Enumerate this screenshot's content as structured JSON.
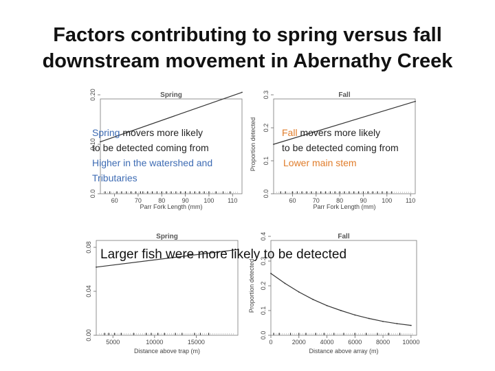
{
  "slide": {
    "title_line1": "Factors contributing to spring versus fall",
    "title_line2": "downstream movement in Abernathy Creek",
    "caption": "Larger fish were more likely to be detected",
    "colors": {
      "spring_accent": "#3d6bb3",
      "fall_accent": "#e07c2a"
    }
  },
  "annotations": {
    "spring_top": {
      "line1_accent": "Spring",
      "line1_rest": " movers more likely",
      "line2": "to be detected coming from",
      "line3": "Higher in the watershed and",
      "line4": "Tributaries"
    },
    "fall_top": {
      "line1_accent": "Fall",
      "line1_rest": " movers more likely",
      "line2": "to be detected coming from",
      "line3": "Lower main stem"
    }
  },
  "chart_data": [
    {
      "id": "spring-length",
      "type": "line",
      "title": "Spring",
      "xlabel": "Parr Fork Length (mm)",
      "ylabel": "",
      "xlim": [
        54,
        114
      ],
      "ylim": [
        0,
        0.2
      ],
      "xticks": [
        60,
        70,
        80,
        90,
        100,
        110
      ],
      "yticks": [
        0,
        0.1,
        0.2
      ],
      "ytick_labels": [
        "0.0",
        "0.10",
        "0.20"
      ],
      "x": [
        54,
        114
      ],
      "y": [
        0.105,
        0.205
      ],
      "rug": [
        56,
        58,
        61,
        63,
        65,
        67,
        69,
        71,
        72,
        74,
        76,
        78,
        80,
        82,
        84,
        86,
        88,
        90,
        92,
        94,
        96,
        98,
        100,
        103,
        106,
        109
      ]
    },
    {
      "id": "fall-length",
      "type": "line",
      "title": "Fall",
      "xlabel": "Parr Fork Length (mm)",
      "ylabel": "Proportion detected",
      "xlim": [
        52,
        112
      ],
      "ylim": [
        0,
        0.3
      ],
      "xticks": [
        60,
        70,
        80,
        90,
        100,
        110
      ],
      "yticks": [
        0,
        0.1,
        0.2,
        0.3
      ],
      "ytick_labels": [
        "0.0",
        "0.1",
        "0.2",
        "0.3"
      ],
      "x": [
        52,
        112
      ],
      "y": [
        0.15,
        0.28
      ],
      "rug": [
        55,
        57,
        60,
        62,
        64,
        66,
        68,
        70,
        72,
        74,
        76,
        78,
        80,
        82,
        84,
        86,
        88,
        90,
        92,
        94,
        96,
        98,
        100,
        102
      ]
    },
    {
      "id": "spring-distance",
      "type": "line",
      "title": "Spring",
      "xlabel": "Distance above trap (m)",
      "ylabel": "",
      "xlim": [
        3000,
        20000
      ],
      "ylim": [
        0,
        0.09
      ],
      "xticks": [
        5000,
        10000,
        15000
      ],
      "yticks": [
        0,
        0.04,
        0.08
      ],
      "ytick_labels": [
        "0.00",
        "0.04",
        "0.08"
      ],
      "x": [
        3000,
        20000
      ],
      "y": [
        0.062,
        0.078
      ],
      "rug": [
        4000,
        4500,
        5200,
        6000,
        7500,
        9000,
        9600,
        10400,
        11200,
        12500,
        13300,
        14800,
        15500,
        16500
      ]
    },
    {
      "id": "fall-distance",
      "type": "line",
      "title": "Fall",
      "xlabel": "Distance above array (m)",
      "ylabel": "Proportion detected",
      "xlim": [
        0,
        10400
      ],
      "ylim": [
        0,
        0.4
      ],
      "xticks": [
        0,
        2000,
        4000,
        6000,
        8000,
        10000
      ],
      "yticks": [
        0,
        0.1,
        0.2,
        0.3,
        0.4
      ],
      "ytick_labels": [
        "0.0",
        "0.1",
        "0.2",
        "0.3",
        "0.4"
      ],
      "x": [
        0,
        1000,
        2000,
        3000,
        4000,
        5000,
        6000,
        7000,
        8000,
        9000,
        10000
      ],
      "y": [
        0.25,
        0.21,
        0.175,
        0.145,
        0.12,
        0.1,
        0.082,
        0.068,
        0.056,
        0.047,
        0.04
      ],
      "rug": [
        200,
        600,
        1400,
        2000,
        2500,
        3200,
        3800,
        4500,
        5200,
        6000,
        6800,
        7600,
        8400,
        9200
      ]
    }
  ]
}
